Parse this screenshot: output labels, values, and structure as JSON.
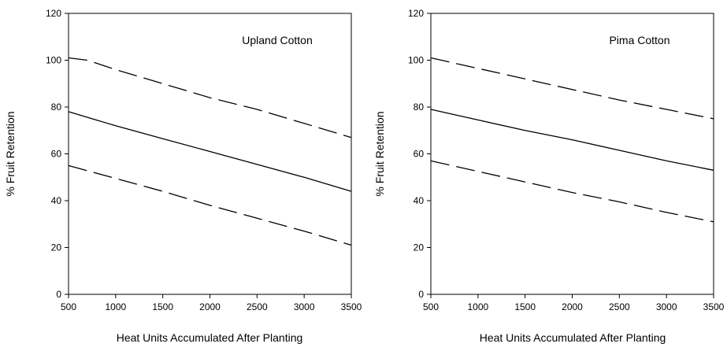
{
  "chart_data": [
    {
      "type": "line",
      "title": "Upland Cotton",
      "xlabel": "Heat Units Accumulated After Planting",
      "ylabel": "% Fruit Retention",
      "xlim": [
        500,
        3500
      ],
      "ylim": [
        0,
        120
      ],
      "xticks": [
        500,
        1000,
        1500,
        2000,
        2500,
        3000,
        3500
      ],
      "yticks": [
        0,
        20,
        40,
        60,
        80,
        100,
        120
      ],
      "grid": false,
      "series": [
        {
          "style": "dashed",
          "x": [
            500,
            700,
            1000,
            1500,
            2000,
            2500,
            3000,
            3500
          ],
          "values": [
            101,
            100,
            96,
            90,
            84,
            79,
            73,
            67
          ]
        },
        {
          "style": "solid",
          "x": [
            500,
            1000,
            1500,
            2000,
            2500,
            3000,
            3500
          ],
          "values": [
            78,
            72,
            66.5,
            61,
            55.5,
            50,
            44
          ]
        },
        {
          "style": "dashed",
          "x": [
            500,
            1000,
            1500,
            2000,
            2500,
            3000,
            3500
          ],
          "values": [
            55,
            49.5,
            44,
            38,
            32.5,
            27,
            21
          ]
        }
      ]
    },
    {
      "type": "line",
      "title": "Pima Cotton",
      "xlabel": "Heat Units Accumulated After Planting",
      "ylabel": "% Fruit Retention",
      "xlim": [
        500,
        3500
      ],
      "ylim": [
        0,
        120
      ],
      "xticks": [
        500,
        1000,
        1500,
        2000,
        2500,
        3000,
        3500
      ],
      "yticks": [
        0,
        20,
        40,
        60,
        80,
        100,
        120
      ],
      "grid": false,
      "series": [
        {
          "style": "dashed",
          "x": [
            500,
            1000,
            1500,
            2000,
            2500,
            3000,
            3500
          ],
          "values": [
            101,
            96.5,
            92,
            87.5,
            83,
            79,
            75
          ]
        },
        {
          "style": "solid",
          "x": [
            500,
            1000,
            1500,
            2000,
            2500,
            3000,
            3500
          ],
          "values": [
            79,
            74.5,
            70,
            66,
            61.5,
            57,
            53
          ]
        },
        {
          "style": "dashed",
          "x": [
            500,
            1000,
            1500,
            2000,
            2500,
            3000,
            3500
          ],
          "values": [
            57,
            52.5,
            48,
            43.5,
            39.5,
            35,
            31
          ]
        }
      ]
    }
  ]
}
